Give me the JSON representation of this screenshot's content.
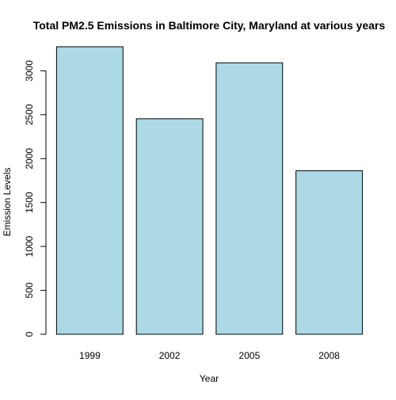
{
  "chart_data": {
    "type": "bar",
    "title": "Total PM2.5 Emissions in Baltimore City, Maryland at various years",
    "xlabel": "Year",
    "ylabel": "Emission Levels",
    "categories": [
      "1999",
      "2002",
      "2005",
      "2008"
    ],
    "values": [
      3274,
      2454,
      3091,
      1862
    ],
    "ylim": [
      0,
      3274
    ],
    "yticks": [
      0,
      500,
      1000,
      1500,
      2000,
      2500,
      3000
    ],
    "ytick_labels": [
      "0",
      "500",
      "1000",
      "1500",
      "2000",
      "2500",
      "3000"
    ],
    "bar_color": "#add8e6",
    "bar_border_color": "#000000",
    "grid": false,
    "legend": "none"
  }
}
